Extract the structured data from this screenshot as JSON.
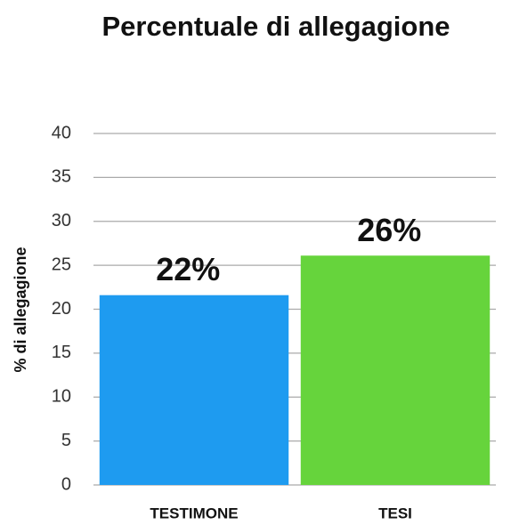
{
  "chart_data": {
    "type": "bar",
    "title": "Percentuale di allegagione",
    "y_label": "% di allegagione",
    "categories": [
      "TESTIMONE",
      "TESI"
    ],
    "values": [
      21.6,
      26.1
    ],
    "value_labels": [
      "22%",
      "26%"
    ],
    "colors": [
      "#1e9bf0",
      "#66d43c"
    ],
    "ylim": [
      0,
      40
    ],
    "yticks": [
      0,
      5,
      10,
      15,
      20,
      25,
      30,
      35,
      40
    ],
    "grid": true
  }
}
